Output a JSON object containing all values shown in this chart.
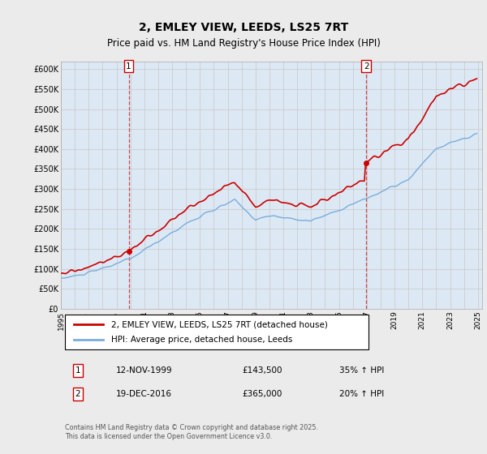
{
  "title_line1": "2, EMLEY VIEW, LEEDS, LS25 7RT",
  "title_line2": "Price paid vs. HM Land Registry's House Price Index (HPI)",
  "ylim": [
    0,
    620000
  ],
  "yticks": [
    0,
    50000,
    100000,
    150000,
    200000,
    250000,
    300000,
    350000,
    400000,
    450000,
    500000,
    550000,
    600000
  ],
  "ytick_labels": [
    "£0",
    "£50K",
    "£100K",
    "£150K",
    "£200K",
    "£250K",
    "£300K",
    "£350K",
    "£400K",
    "£450K",
    "£500K",
    "£550K",
    "£600K"
  ],
  "sale1_date": "12-NOV-1999",
  "sale1_price": 143500,
  "sale1_year": 1999.875,
  "sale1_pct": "35% ↑ HPI",
  "sale2_date": "19-DEC-2016",
  "sale2_price": 365000,
  "sale2_year": 2016.958,
  "sale2_pct": "20% ↑ HPI",
  "legend_property": "2, EMLEY VIEW, LEEDS, LS25 7RT (detached house)",
  "legend_hpi": "HPI: Average price, detached house, Leeds",
  "footer": "Contains HM Land Registry data © Crown copyright and database right 2025.\nThis data is licensed under the Open Government Licence v3.0.",
  "property_color": "#cc0000",
  "hpi_color": "#7aacda",
  "vline_color": "#cc0000",
  "grid_color": "#cccccc",
  "background_color": "#ebebeb",
  "plot_bg_color": "#dce9f5"
}
